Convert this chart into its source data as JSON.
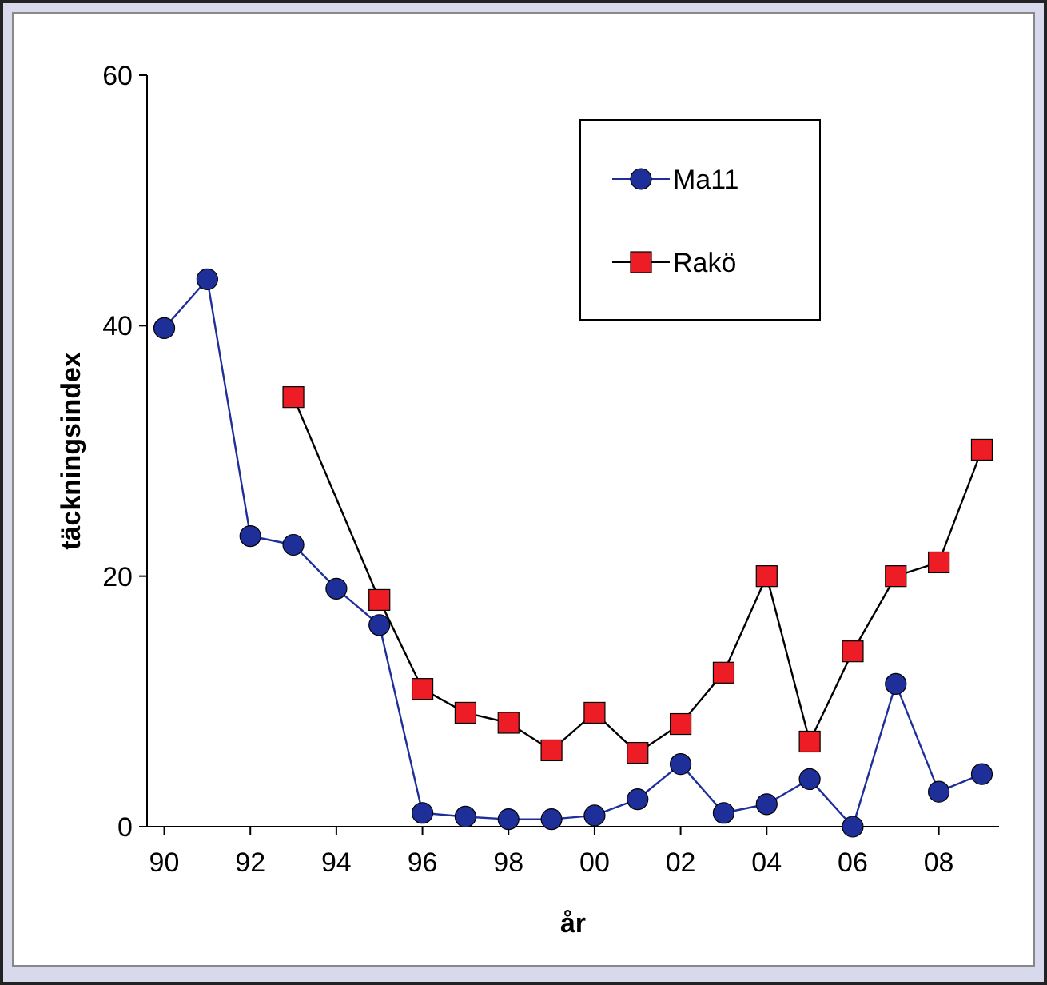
{
  "chart_data": {
    "type": "line",
    "xlabel": "år",
    "ylabel": "täckningsindex",
    "xlim": [
      1989.6,
      2009.4
    ],
    "xticks": [
      {
        "value": 1990,
        "label": "90"
      },
      {
        "value": 1992,
        "label": "92"
      },
      {
        "value": 1994,
        "label": "94"
      },
      {
        "value": 1996,
        "label": "96"
      },
      {
        "value": 1998,
        "label": "98"
      },
      {
        "value": 2000,
        "label": "00"
      },
      {
        "value": 2002,
        "label": "02"
      },
      {
        "value": 2004,
        "label": "04"
      },
      {
        "value": 2006,
        "label": "06"
      },
      {
        "value": 2008,
        "label": "08"
      }
    ],
    "ylim": [
      0,
      60
    ],
    "yticks": [
      0,
      20,
      40,
      60
    ],
    "grid": false,
    "legend": "top right",
    "series": [
      {
        "name": "Ma11",
        "color": "#1f2f9a",
        "marker": "circle",
        "x": [
          1990,
          1991,
          1992,
          1993,
          1994,
          1995,
          1996,
          1997,
          1998,
          1999,
          2000,
          2001,
          2002,
          2003,
          2004,
          2005,
          2006,
          2007,
          2008,
          2009
        ],
        "values": [
          39.8,
          43.7,
          23.2,
          22.5,
          19.0,
          16.1,
          1.1,
          0.8,
          0.6,
          0.6,
          0.9,
          2.2,
          5.0,
          1.1,
          1.8,
          3.8,
          0,
          11.4,
          2.8,
          4.2
        ]
      },
      {
        "name": "Rakö",
        "color": "#ee1c24",
        "marker": "square",
        "x": [
          1993,
          1995,
          1996,
          1997,
          1998,
          1999,
          2000,
          2001,
          2002,
          2003,
          2004,
          2005,
          2006,
          2007,
          2008,
          2009
        ],
        "values": [
          34.3,
          18.1,
          11.0,
          9.1,
          8.3,
          6.1,
          9.1,
          5.9,
          8.2,
          12.3,
          20.0,
          6.8,
          14.0,
          20.0,
          21.1,
          30.1
        ]
      }
    ]
  }
}
